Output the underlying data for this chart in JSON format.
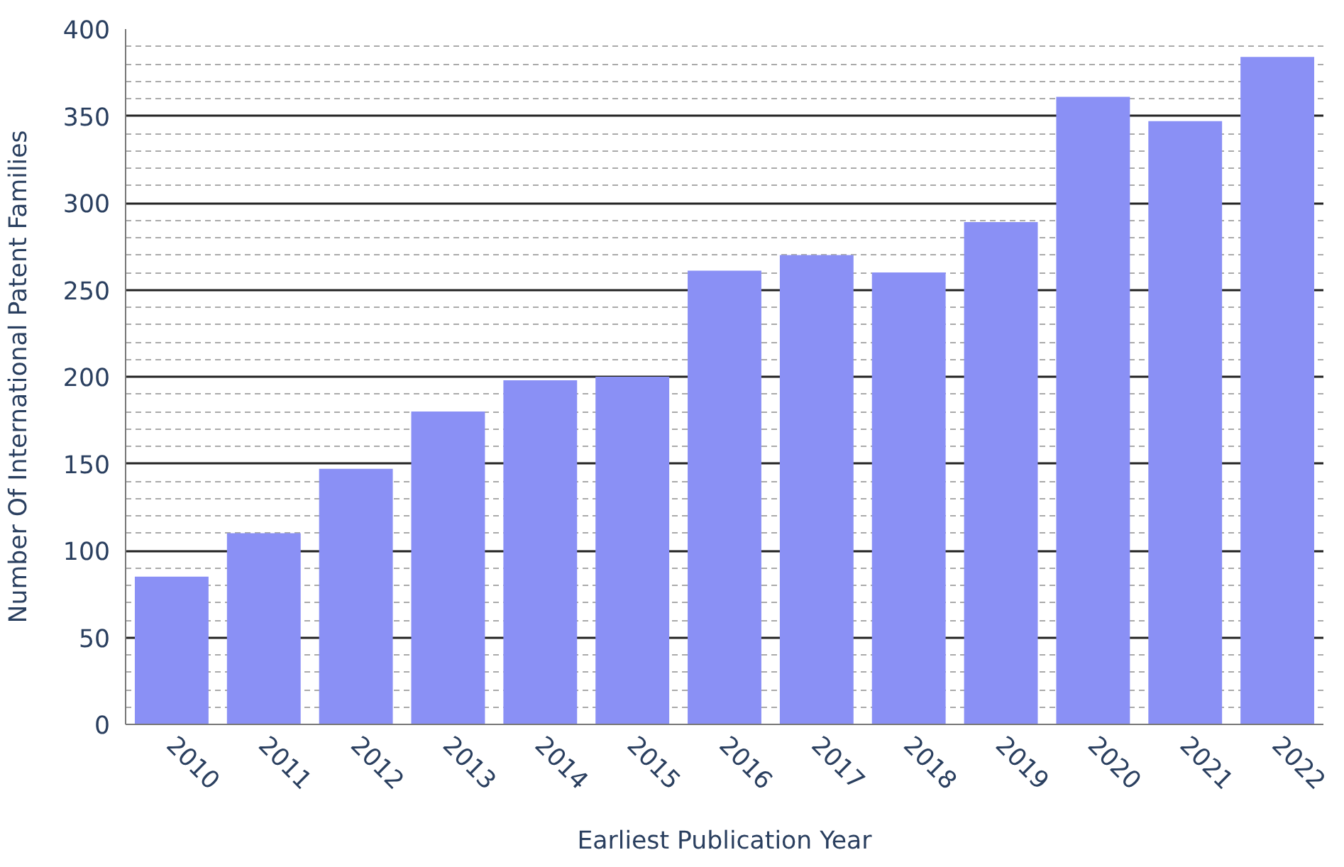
{
  "chart_data": {
    "type": "bar",
    "xlabel": "Earliest Publication Year",
    "ylabel": "Number Of International Patent Families",
    "categories": [
      "2010",
      "2011",
      "2012",
      "2013",
      "2014",
      "2015",
      "2016",
      "2017",
      "2018",
      "2019",
      "2020",
      "2021",
      "2022"
    ],
    "values": [
      85,
      110,
      147,
      180,
      198,
      200,
      261,
      270,
      260,
      289,
      361,
      347,
      384
    ],
    "color": "#8a90f5",
    "ylim": [
      0,
      400
    ],
    "yticks": [
      0,
      50,
      100,
      150,
      200,
      250,
      300,
      350,
      400
    ],
    "grid": "y"
  }
}
